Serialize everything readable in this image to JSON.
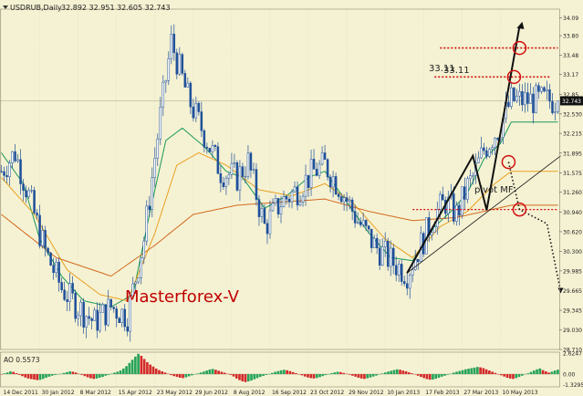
{
  "header": {
    "symbol_label": "USDRUB,Daily",
    "ohlc_label": "32.892 32.951 32.605 32.743"
  },
  "colors": {
    "background": "#F5F2D3",
    "grid": "#D9D3B8",
    "candles": "#1E4F9A",
    "ma_fast": "#1A9A5A",
    "ma_mid": "#E8A020",
    "ma_slow": "#D2691E",
    "ao_up": "#27A35A",
    "ao_down": "#D22A2A",
    "annotation_red": "#D01010",
    "watermark": "#C00000"
  },
  "chart_data": [
    {
      "type": "candlestick",
      "title": "USDRUB,Daily",
      "ohlc_readout": "32.892 32.951 32.605 32.743",
      "x_tick_labels": [
        "14 Dec 2011",
        "30 Jan 2012",
        "8 Mar 2012",
        "15 Apr 2012",
        "23 May 2012",
        "29 Jun 2012",
        "8 Aug 2012",
        "16 Sep 2012",
        "23 Oct 2012",
        "29 Nov 2012",
        "10 Jan 2013",
        "17 Feb 2013",
        "27 Mar 2013",
        "10 May 2013"
      ],
      "y_tick_labels": [
        "34.09",
        "33.80",
        "33.48",
        "33.17",
        "32.85",
        "32.743",
        "32.530",
        "32.215",
        "31.895",
        "31.575",
        "31.260",
        "30.940",
        "30.620",
        "30.300",
        "29.985",
        "29.665",
        "29.345",
        "29.030",
        "28.710"
      ],
      "ylim": [
        28.71,
        34.23
      ],
      "last_price": 32.743,
      "close_path": [
        [
          0,
          31.6
        ],
        [
          5,
          31.9
        ],
        [
          10,
          31.2
        ],
        [
          16,
          30.3
        ],
        [
          22,
          29.7
        ],
        [
          28,
          29.4
        ],
        [
          34,
          29.15
        ],
        [
          40,
          29.4
        ],
        [
          46,
          29.25
        ],
        [
          52,
          30.5
        ],
        [
          58,
          32.5
        ],
        [
          62,
          33.7
        ],
        [
          68,
          32.8
        ],
        [
          74,
          32.2
        ],
        [
          80,
          31.6
        ],
        [
          86,
          31.5
        ],
        [
          90,
          31.75
        ],
        [
          96,
          30.7
        ],
        [
          102,
          31.1
        ],
        [
          108,
          31.3
        ],
        [
          114,
          31.6
        ],
        [
          118,
          31.7
        ],
        [
          124,
          31.3
        ],
        [
          130,
          30.8
        ],
        [
          136,
          30.4
        ],
        [
          142,
          30.15
        ],
        [
          148,
          29.95
        ],
        [
          154,
          30.5
        ],
        [
          158,
          30.9
        ],
        [
          162,
          31.1
        ],
        [
          166,
          30.9
        ],
        [
          170,
          31.35
        ],
        [
          172,
          31.5
        ],
        [
          176,
          31.95
        ],
        [
          182,
          32.35
        ],
        [
          186,
          32.75
        ]
      ],
      "series": [
        {
          "name": "",
          "color": "#1A9A5A",
          "values": [
            [
              0,
              31.9
            ],
            [
              8,
              31.4
            ],
            [
              14,
              30.5
            ],
            [
              22,
              29.9
            ],
            [
              30,
              29.5
            ],
            [
              40,
              29.4
            ],
            [
              48,
              29.6
            ],
            [
              54,
              30.9
            ],
            [
              60,
              32.1
            ],
            [
              66,
              32.3
            ],
            [
              74,
              32.0
            ],
            [
              82,
              31.6
            ],
            [
              88,
              31.5
            ],
            [
              96,
              31.0
            ],
            [
              104,
              31.2
            ],
            [
              112,
              31.5
            ],
            [
              118,
              31.6
            ],
            [
              126,
              31.1
            ],
            [
              134,
              30.6
            ],
            [
              142,
              30.2
            ],
            [
              150,
              30.15
            ],
            [
              158,
              30.7
            ],
            [
              164,
              30.95
            ],
            [
              170,
              31.25
            ],
            [
              176,
              31.8
            ],
            [
              182,
              32.05
            ],
            [
              186,
              32.4
            ]
          ]
        },
        {
          "name": "",
          "color": "#E8A020",
          "values": [
            [
              0,
              31.5
            ],
            [
              12,
              30.9
            ],
            [
              24,
              30.0
            ],
            [
              36,
              29.6
            ],
            [
              46,
              29.5
            ],
            [
              56,
              30.6
            ],
            [
              64,
              31.7
            ],
            [
              72,
              31.9
            ],
            [
              82,
              31.7
            ],
            [
              94,
              31.3
            ],
            [
              106,
              31.2
            ],
            [
              118,
              31.4
            ],
            [
              128,
              31.1
            ],
            [
              140,
              30.5
            ],
            [
              150,
              30.2
            ],
            [
              160,
              30.7
            ],
            [
              170,
              30.95
            ],
            [
              180,
              31.4
            ],
            [
              186,
              31.6
            ]
          ]
        },
        {
          "name": "",
          "color": "#D2691E",
          "values": [
            [
              0,
              30.9
            ],
            [
              20,
              30.2
            ],
            [
              40,
              29.9
            ],
            [
              56,
              30.4
            ],
            [
              70,
              30.9
            ],
            [
              86,
              31.05
            ],
            [
              102,
              31.1
            ],
            [
              118,
              31.15
            ],
            [
              134,
              30.95
            ],
            [
              150,
              30.8
            ],
            [
              166,
              30.85
            ],
            [
              186,
              31.05
            ]
          ]
        }
      ],
      "annotations": {
        "watermark": "Masterforex-V",
        "level_labels": [
          "33.11",
          "33.11"
        ],
        "pivot_label": "pivot MF",
        "levels": [
          33.6,
          33.13,
          30.98
        ],
        "zigzag_path": [
          [
            148,
            29.95
          ],
          [
            172,
            31.85
          ],
          [
            177,
            30.97
          ],
          [
            189,
            33.95
          ]
        ],
        "trendline": [
          [
            148,
            29.95
          ],
          [
            204,
            31.85
          ]
        ],
        "projection_path": [
          [
            185,
            31.75
          ],
          [
            189,
            30.98
          ],
          [
            199,
            30.75
          ],
          [
            204,
            29.65
          ]
        ],
        "red_circle_levels": [
          [
            189,
            33.6
          ],
          [
            187,
            33.13
          ],
          [
            185,
            31.75
          ],
          [
            189,
            30.98
          ]
        ]
      }
    },
    {
      "type": "bar",
      "title": "AO 0.5573",
      "y_tick_labels": [
        "2.6247",
        "0.00",
        "-1.3295"
      ],
      "ylim": [
        -1.6,
        2.75
      ],
      "values": [
        -0.05,
        0.1,
        0.2,
        0.35,
        0.28,
        0.12,
        -0.1,
        -0.25,
        -0.42,
        -0.55,
        -0.62,
        -0.68,
        -0.75,
        -0.72,
        -0.6,
        -0.45,
        -0.32,
        -0.2,
        -0.1,
        -0.05,
        0.05,
        0.15,
        0.25,
        0.35,
        0.3,
        0.2,
        0.05,
        -0.1,
        -0.25,
        -0.4,
        -0.52,
        -0.6,
        -0.55,
        -0.45,
        -0.35,
        -0.2,
        -0.1,
        0.05,
        0.18,
        0.3,
        0.45,
        0.7,
        1.0,
        1.4,
        1.8,
        2.2,
        2.55,
        2.3,
        1.9,
        1.5,
        1.2,
        0.95,
        0.7,
        0.5,
        0.35,
        0.2,
        0.05,
        -0.12,
        -0.25,
        -0.35,
        -0.45,
        -0.5,
        -0.4,
        -0.28,
        -0.15,
        -0.05,
        0.08,
        0.2,
        0.32,
        0.45,
        0.58,
        0.65,
        0.55,
        0.42,
        0.3,
        0.18,
        0.05,
        -0.1,
        -0.3,
        -0.55,
        -0.75,
        -0.9,
        -1.0,
        -0.92,
        -0.8,
        -0.65,
        -0.5,
        -0.35,
        -0.22,
        -0.1,
        0.02,
        0.15,
        0.28,
        0.38,
        0.48,
        0.55,
        0.48,
        0.38,
        0.25,
        0.12,
        -0.02,
        -0.15,
        -0.3,
        -0.42,
        -0.5,
        -0.55,
        -0.48,
        -0.38,
        -0.25,
        -0.12,
        0.0,
        0.12,
        0.22,
        0.3,
        0.25,
        0.15,
        0.05,
        -0.08,
        -0.2,
        -0.32,
        -0.45,
        -0.55,
        -0.6,
        -0.52,
        -0.42,
        -0.3,
        -0.18,
        -0.05,
        0.08,
        0.2,
        0.32,
        0.42,
        0.52,
        0.6,
        0.55,
        0.45,
        0.35,
        0.22,
        0.1,
        -0.05,
        -0.2,
        -0.35,
        -0.5,
        -0.62,
        -0.7,
        -0.68,
        -0.58,
        -0.45,
        -0.32,
        -0.2,
        -0.08,
        0.05,
        0.18,
        0.3,
        0.4,
        0.5,
        0.6,
        0.68,
        0.75,
        0.82,
        0.9,
        0.85,
        0.75,
        0.6,
        0.45,
        0.3,
        0.15,
        0.0,
        -0.15,
        -0.3,
        -0.45,
        -0.55,
        -0.6,
        -0.5,
        -0.35,
        -0.2,
        -0.05,
        0.1,
        0.28,
        0.45,
        0.6,
        0.72,
        0.5,
        0.35,
        0.2,
        0.3,
        0.45,
        0.56
      ]
    }
  ]
}
